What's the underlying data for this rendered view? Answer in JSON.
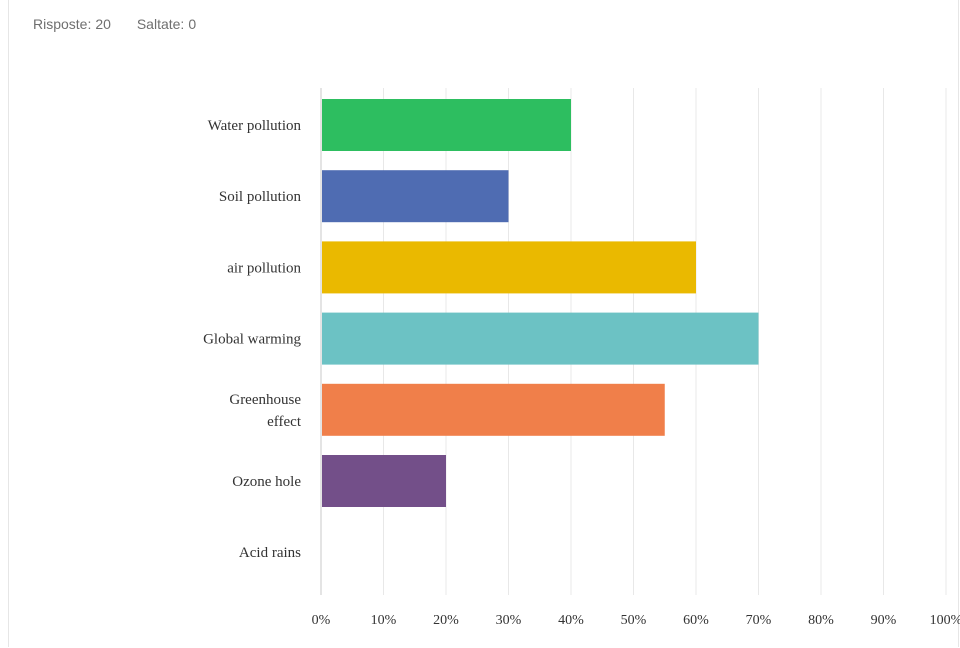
{
  "summary": {
    "responses_label": "Risposte:",
    "responses_value": "20",
    "skipped_label": "Saltate:",
    "skipped_value": "0"
  },
  "chart_data": {
    "type": "bar",
    "orientation": "horizontal",
    "categories": [
      "Water pollution",
      "Soil pollution",
      "air pollution",
      "Global warming",
      "Greenhouse effect",
      "Ozone hole",
      "Acid rains"
    ],
    "category_lines": [
      [
        "Water pollution"
      ],
      [
        "Soil pollution"
      ],
      [
        "air pollution"
      ],
      [
        "Global warming"
      ],
      [
        "Greenhouse",
        "effect"
      ],
      [
        "Ozone hole"
      ],
      [
        "Acid rains"
      ]
    ],
    "values": [
      40,
      30,
      60,
      70,
      55,
      20,
      0
    ],
    "colors": [
      "#2dbe60",
      "#4f6cb2",
      "#eab900",
      "#6cc2c4",
      "#f07f4a",
      "#734f89",
      "#cccccc"
    ],
    "x_ticks": [
      "0%",
      "10%",
      "20%",
      "30%",
      "40%",
      "50%",
      "60%",
      "70%",
      "80%",
      "90%",
      "100%"
    ],
    "xlim": [
      0,
      100
    ],
    "unit": "%",
    "grid": true,
    "gridline_color": "#e8e8e8",
    "axis_color": "#c8c8c8"
  }
}
